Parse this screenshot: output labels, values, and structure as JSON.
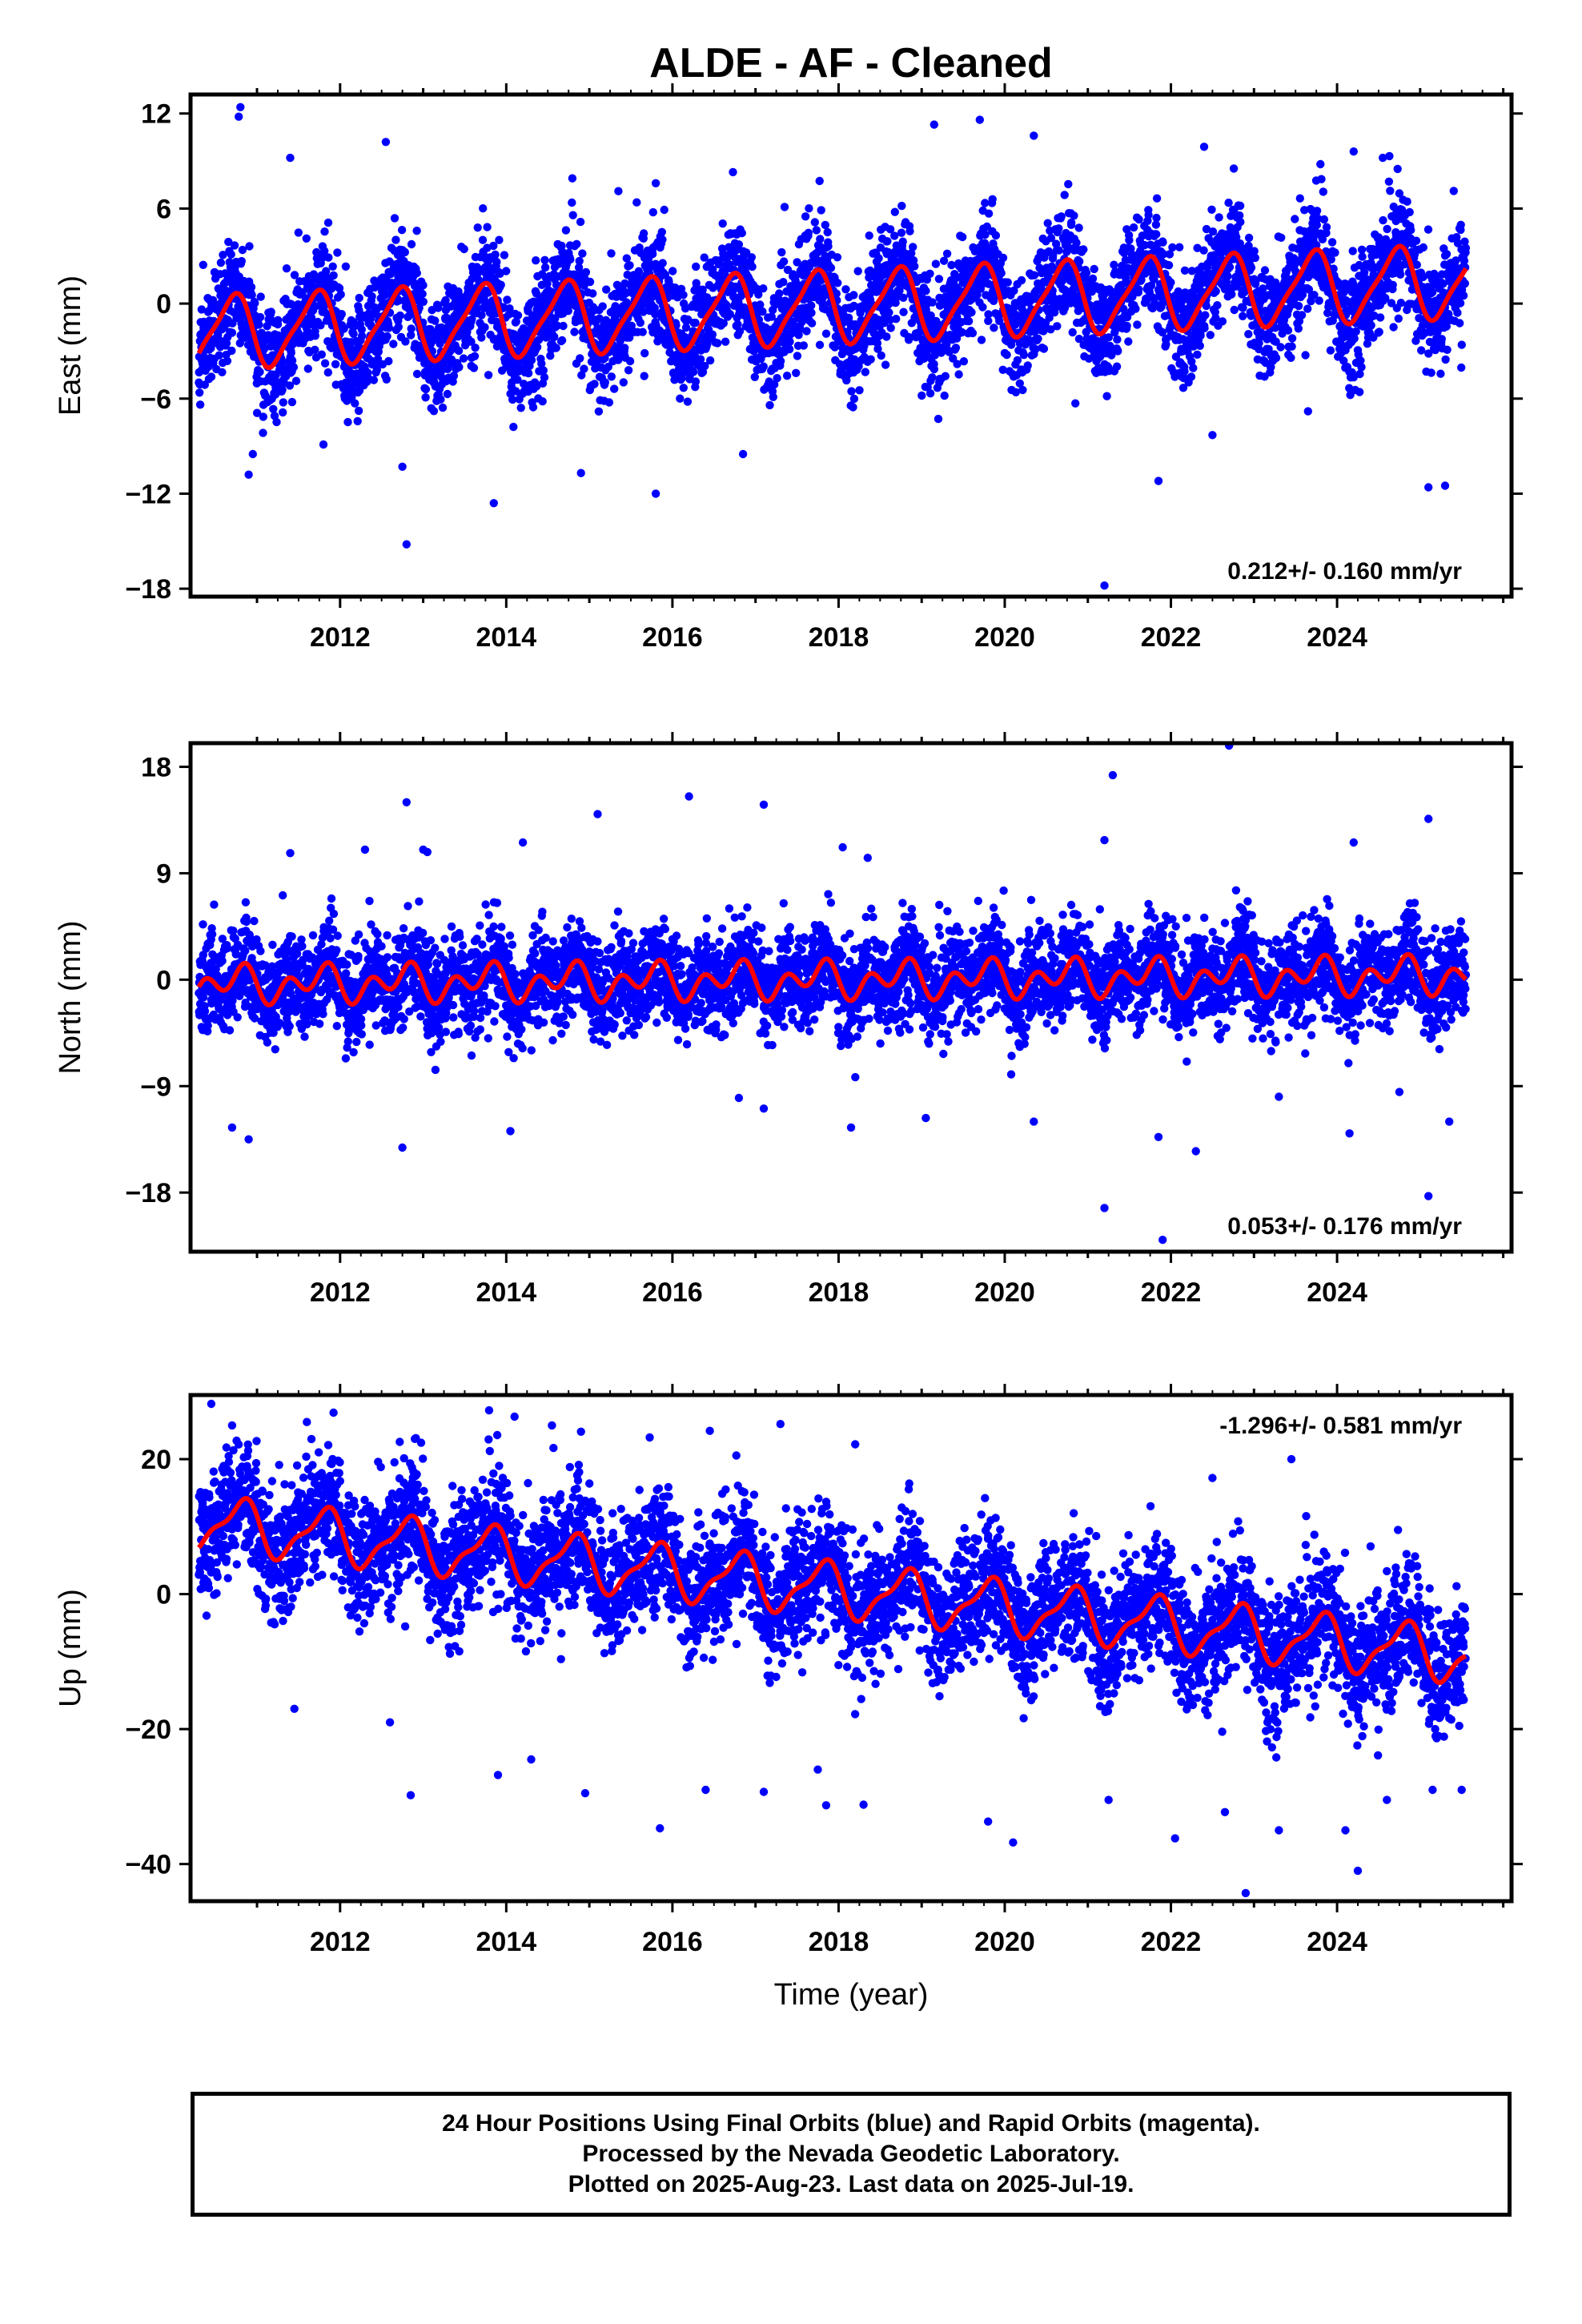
{
  "title": "ALDE  - AF - Cleaned",
  "xlabel": "Time (year)",
  "caption": [
    "24 Hour Positions Using Final Orbits (blue) and Rapid Orbits (magenta).",
    "Processed by the Nevada Geodetic Laboratory.",
    "Plotted on 2025-Aug-23. Last data on 2025-Jul-19."
  ],
  "colors": {
    "points": "#0000ff",
    "model": "#ff0000",
    "frame": "#000000"
  },
  "chart_data": [
    {
      "type": "scatter",
      "component": "East",
      "ylabel": "East (mm)",
      "rate_text": "0.212+/- 0.160 mm/yr",
      "rate_position": "bottom-right",
      "xlim": [
        2010.2,
        2026.1
      ],
      "ylim": [
        -18.5,
        13.2
      ],
      "yticks": [
        12,
        6,
        0,
        -6,
        -12,
        -18
      ],
      "xticks": [
        2012,
        2014,
        2016,
        2018,
        2020,
        2022,
        2024
      ],
      "data_start": 2010.3,
      "data_end": 2025.55,
      "model": {
        "offset": -0.2,
        "rate": 0.212,
        "ref_year": 2018,
        "annual_amp": 2.2,
        "annual_phase_year": 0.45,
        "semiannual_amp": 0.5,
        "semiannual_phase_year": 0.2
      },
      "scatter_sigma": 1.7,
      "outliers": [
        [
          2010.8,
          12.4
        ],
        [
          2010.78,
          11.8
        ],
        [
          2011.4,
          9.2
        ],
        [
          2012.55,
          10.2
        ],
        [
          2019.15,
          11.3
        ],
        [
          2019.7,
          11.6
        ],
        [
          2020.35,
          10.6
        ],
        [
          2022.4,
          9.9
        ],
        [
          2023.8,
          8.8
        ],
        [
          2024.2,
          9.6
        ],
        [
          2024.55,
          9.2
        ],
        [
          2011.8,
          -8.9
        ],
        [
          2012.75,
          -10.3
        ],
        [
          2012.8,
          -15.2
        ],
        [
          2013.85,
          -12.6
        ],
        [
          2014.9,
          -10.7
        ],
        [
          2015.8,
          -12.0
        ],
        [
          2016.85,
          -9.5
        ],
        [
          2021.2,
          -17.8
        ],
        [
          2021.85,
          -11.2
        ],
        [
          2022.5,
          -8.3
        ],
        [
          2025.1,
          -11.6
        ],
        [
          2025.3,
          -11.5
        ],
        [
          2010.9,
          -10.8
        ],
        [
          2010.95,
          -9.5
        ],
        [
          2015.35,
          7.1
        ],
        [
          2017.35,
          6.1
        ],
        [
          2020.85,
          -6.3
        ],
        [
          2023.65,
          -6.8
        ],
        [
          2015.8,
          7.6
        ]
      ]
    },
    {
      "type": "scatter",
      "component": "North",
      "ylabel": "North (mm)",
      "rate_text": "0.053+/- 0.176 mm/yr",
      "rate_position": "bottom-right",
      "xlim": [
        2010.2,
        2026.1
      ],
      "ylim": [
        -23,
        20
      ],
      "yticks": [
        18,
        9,
        0,
        -9,
        -18
      ],
      "xticks": [
        2012,
        2014,
        2016,
        2018,
        2020,
        2022,
        2024
      ],
      "data_start": 2010.3,
      "data_end": 2025.55,
      "model": {
        "offset": 0.0,
        "rate": 0.053,
        "ref_year": 2018,
        "annual_amp": 0.9,
        "annual_phase_year": 0.5,
        "semiannual_amp": 1.1,
        "semiannual_phase_year": 0.25
      },
      "scatter_sigma": 2.0,
      "outliers": [
        [
          2012.8,
          15.0
        ],
        [
          2015.1,
          14.0
        ],
        [
          2016.2,
          15.5
        ],
        [
          2017.1,
          14.8
        ],
        [
          2021.3,
          17.3
        ],
        [
          2022.7,
          19.8
        ],
        [
          2025.1,
          13.6
        ],
        [
          2010.7,
          -12.5
        ],
        [
          2010.9,
          -13.5
        ],
        [
          2012.75,
          -14.2
        ],
        [
          2014.05,
          -12.8
        ],
        [
          2021.2,
          -19.3
        ],
        [
          2021.85,
          -13.3
        ],
        [
          2022.3,
          -14.5
        ],
        [
          2024.15,
          -13.0
        ],
        [
          2025.1,
          -18.3
        ],
        [
          2025.35,
          -12.0
        ],
        [
          2021.9,
          -22.0
        ],
        [
          2013.05,
          10.8
        ],
        [
          2013.0,
          11.0
        ],
        [
          2014.2,
          11.6
        ],
        [
          2018.05,
          11.2
        ],
        [
          2018.35,
          10.3
        ],
        [
          2021.2,
          11.8
        ],
        [
          2024.2,
          11.6
        ],
        [
          2016.8,
          -10.0
        ],
        [
          2017.1,
          -10.9
        ],
        [
          2018.15,
          -12.5
        ],
        [
          2019.05,
          -11.7
        ],
        [
          2020.35,
          -12.0
        ],
        [
          2024.75,
          -9.5
        ],
        [
          2011.4,
          10.7
        ],
        [
          2012.3,
          11.0
        ],
        [
          2023.3,
          -9.9
        ]
      ]
    },
    {
      "type": "scatter",
      "component": "Up",
      "ylabel": "Up (mm)",
      "rate_text": "-1.296+/- 0.581 mm/yr",
      "rate_position": "top-right",
      "xlim": [
        2010.2,
        2026.1
      ],
      "ylim": [
        -45.5,
        29.5
      ],
      "yticks": [
        20,
        0,
        -20,
        -40
      ],
      "xticks": [
        2012,
        2014,
        2016,
        2018,
        2020,
        2022,
        2024
      ],
      "data_start": 2010.3,
      "data_end": 2025.55,
      "model": {
        "offset": 0.6,
        "rate": -1.296,
        "ref_year": 2018,
        "annual_amp": 3.7,
        "annual_phase_year": 0.55,
        "semiannual_amp": 1.3,
        "semiannual_phase_year": 0.3
      },
      "scatter_sigma": 4.6,
      "outliers": [
        [
          2010.45,
          28.2
        ],
        [
          2010.7,
          25.0
        ],
        [
          2011.6,
          25.5
        ],
        [
          2012.9,
          23.0
        ],
        [
          2014.1,
          26.3
        ],
        [
          2014.55,
          25.0
        ],
        [
          2016.45,
          24.2
        ],
        [
          2017.3,
          25.2
        ],
        [
          2018.2,
          22.2
        ],
        [
          2022.5,
          17.2
        ],
        [
          2023.45,
          20.0
        ],
        [
          2012.85,
          -29.8
        ],
        [
          2013.9,
          -26.8
        ],
        [
          2014.3,
          -24.5
        ],
        [
          2014.95,
          -29.5
        ],
        [
          2015.85,
          -34.7
        ],
        [
          2016.4,
          -29.0
        ],
        [
          2017.1,
          -29.3
        ],
        [
          2017.85,
          -31.3
        ],
        [
          2018.3,
          -31.2
        ],
        [
          2019.8,
          -33.7
        ],
        [
          2020.1,
          -36.8
        ],
        [
          2022.05,
          -36.2
        ],
        [
          2022.65,
          -32.3
        ],
        [
          2022.9,
          -44.3
        ],
        [
          2023.3,
          -35.0
        ],
        [
          2024.1,
          -35.0
        ],
        [
          2024.25,
          -41.0
        ],
        [
          2025.15,
          -29.0
        ],
        [
          2025.5,
          -29.0
        ],
        [
          2024.6,
          -30.5
        ],
        [
          2017.75,
          -26.0
        ],
        [
          2021.25,
          -30.5
        ],
        [
          2011.45,
          -17.0
        ],
        [
          2012.6,
          -19.0
        ]
      ]
    }
  ]
}
